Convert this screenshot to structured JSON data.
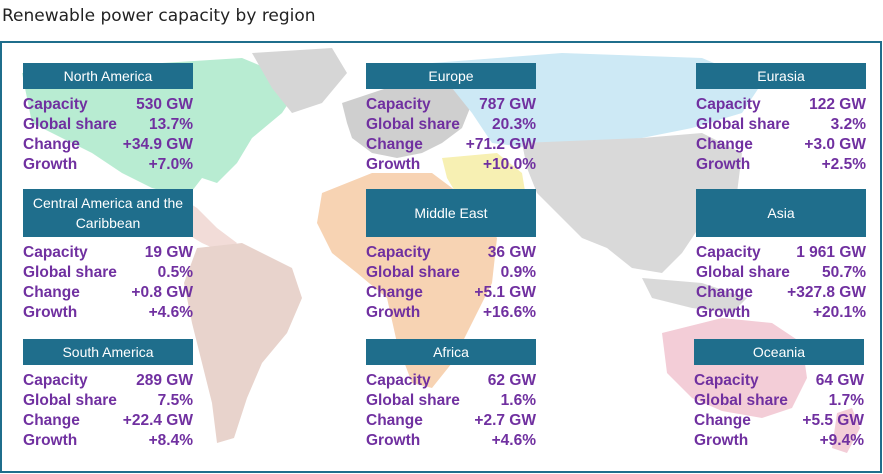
{
  "title": "Renewable power capacity by region",
  "colors": {
    "header_bg": "#1f6e8c",
    "header_text": "#ffffff",
    "value_text": "#7030a0",
    "frame_border": "#1f6e8c"
  },
  "labels": {
    "capacity": "Capacity",
    "share": "Global share",
    "change": "Change",
    "growth": "Growth"
  },
  "chart_data": {
    "type": "table",
    "title": "Renewable power capacity by region",
    "columns": [
      "Capacity",
      "Global share",
      "Change",
      "Growth"
    ],
    "regions": [
      {
        "name": "North America",
        "capacity": "530 GW",
        "share": "13.7%",
        "change": "+34.9 GW",
        "growth": "+7.0%"
      },
      {
        "name": "Europe",
        "capacity": "787 GW",
        "share": "20.3%",
        "change": "+71.2 GW",
        "growth": "+10.0%"
      },
      {
        "name": "Eurasia",
        "capacity": "122 GW",
        "share": "3.2%",
        "change": "+3.0 GW",
        "growth": "+2.5%"
      },
      {
        "name": "Central America and the Caribbean",
        "capacity": "19 GW",
        "share": "0.5%",
        "change": "+0.8 GW",
        "growth": "+4.6%"
      },
      {
        "name": "Middle East",
        "capacity": "36 GW",
        "share": "0.9%",
        "change": "+5.1 GW",
        "growth": "+16.6%"
      },
      {
        "name": "Asia",
        "capacity": "1 961 GW",
        "share": "50.7%",
        "change": "+327.8 GW",
        "growth": "+20.1%"
      },
      {
        "name": "South America",
        "capacity": "289 GW",
        "share": "7.5%",
        "change": "+22.4 GW",
        "growth": "+8.4%"
      },
      {
        "name": "Africa",
        "capacity": "62 GW",
        "share": "1.6%",
        "change": "+2.7 GW",
        "growth": "+4.6%"
      },
      {
        "name": "Oceania",
        "capacity": "64 GW",
        "share": "1.7%",
        "change": "+5.5 GW",
        "growth": "+9.4%"
      }
    ]
  }
}
